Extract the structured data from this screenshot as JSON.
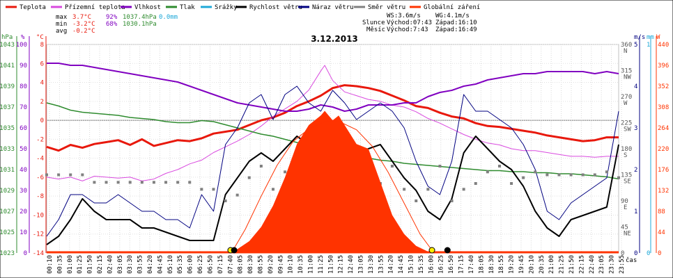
{
  "chart_data": {
    "type": "line",
    "title": "3.12.2013",
    "xlabel": "čas",
    "legend": {
      "placement": "top",
      "entries": [
        {
          "name": "Teplota",
          "color": "#e8180c"
        },
        {
          "name": "Přízemní teplota",
          "color": "#d94adf"
        },
        {
          "name": "Vlhkost",
          "color": "#8000c0"
        },
        {
          "name": "Tlak",
          "color": "#2e8b2e"
        },
        {
          "name": "Srážky",
          "color": "#1ea8d8"
        },
        {
          "name": "Rychlost větru",
          "color": "#000000"
        },
        {
          "name": "Náraz větru",
          "color": "#000080"
        },
        {
          "name": "Směr větru",
          "color": "#808080"
        },
        {
          "name": "Globální záření",
          "color": "#ff3300"
        }
      ]
    },
    "stats": {
      "max": {
        "label": "max",
        "temp": "3.7°C",
        "hum": "92%",
        "pres": "1037.4hPa",
        "rain": "0.0mm"
      },
      "min": {
        "label": "min",
        "temp": "-3.2°C",
        "hum": "68%",
        "pres": "1030.1hPa"
      },
      "avg": {
        "label": "avg",
        "temp": "-0.2°C"
      }
    },
    "info": {
      "ws": "WS:3.6m/s",
      "wg": "WG:4.1m/s",
      "sun_label": "Slunce",
      "sunrise": "Východ:07:43",
      "sunset": "Západ:16:10",
      "moon_label": "Měsíc",
      "moonrise": "Východ:7:43",
      "moonset": "Západ:16:49"
    },
    "axes": {
      "hpa": {
        "unit": "hPa",
        "range": [
          1023,
          1043
        ],
        "ticks": [
          "1043",
          "1041",
          "1039",
          "1037",
          "1035",
          "1033",
          "1031",
          "1029",
          "1027",
          "1025",
          "1023"
        ]
      },
      "pct": {
        "unit": "%",
        "range": [
          0,
          100
        ],
        "ticks": [
          "100",
          "90",
          "80",
          "70",
          "60",
          "50",
          "40",
          "30",
          "20",
          "10",
          "0"
        ]
      },
      "temp": {
        "unit": "°C",
        "range": [
          -14,
          8
        ],
        "ticks": [
          "8",
          "6",
          "4",
          "2",
          "0",
          "-2",
          "-4",
          "-6",
          "-8",
          "-10",
          "-12",
          "-14"
        ]
      },
      "dir": {
        "range": [
          0,
          360
        ],
        "ticks": [
          {
            "deg": "360",
            "name": "N"
          },
          {
            "deg": "315",
            "name": "NW"
          },
          {
            "deg": "270",
            "name": "W"
          },
          {
            "deg": "225",
            "name": "SW"
          },
          {
            "deg": "180",
            "name": "S"
          },
          {
            "deg": "135",
            "name": "SE"
          },
          {
            "deg": "90",
            "name": "E"
          },
          {
            "deg": "45",
            "name": "NE"
          },
          {
            "deg": "0",
            "name": ""
          }
        ]
      },
      "wind": {
        "unit": "m/s",
        "range": [
          0,
          5
        ],
        "ticks": [
          "5",
          "4",
          "3",
          "2",
          "1",
          "0"
        ]
      },
      "rain": {
        "unit": "mm",
        "range": [
          0,
          1
        ],
        "ticks": [
          "1",
          "0"
        ]
      },
      "rad": {
        "unit": "W",
        "range": [
          0,
          440
        ],
        "ticks": [
          "440",
          "396",
          "352",
          "308",
          "264",
          "220",
          "176",
          "132",
          "88",
          "44",
          "0"
        ]
      }
    },
    "x_range_min": [
      0,
      1440
    ],
    "x_ticks": [
      "00:10",
      "00:35",
      "01:00",
      "01:25",
      "01:50",
      "02:15",
      "02:40",
      "03:05",
      "03:30",
      "03:55",
      "04:20",
      "04:45",
      "05:10",
      "05:35",
      "06:00",
      "06:25",
      "06:50",
      "07:15",
      "07:40",
      "08:05",
      "08:30",
      "08:55",
      "09:20",
      "09:45",
      "10:10",
      "10:35",
      "11:00",
      "11:25",
      "11:50",
      "12:15",
      "12:40",
      "13:05",
      "13:30",
      "13:55",
      "14:20",
      "14:45",
      "15:10",
      "15:35",
      "16:00",
      "16:25",
      "16:50",
      "17:15",
      "17:40",
      "18:05",
      "18:30",
      "18:55",
      "19:20",
      "19:45",
      "20:10",
      "20:35",
      "21:00",
      "21:25",
      "21:50",
      "22:15",
      "22:40",
      "23:05",
      "23:30",
      "23:55"
    ],
    "sun_markers_min": [
      463,
      970
    ],
    "moon_markers_min": [
      472,
      1009
    ],
    "series": [
      {
        "name": "Teplota",
        "axis": "temp",
        "x": [
          0,
          30,
          60,
          90,
          120,
          150,
          180,
          210,
          240,
          270,
          300,
          330,
          360,
          390,
          420,
          450,
          480,
          510,
          540,
          570,
          600,
          630,
          660,
          690,
          720,
          750,
          780,
          810,
          840,
          870,
          900,
          930,
          960,
          990,
          1020,
          1050,
          1080,
          1110,
          1140,
          1170,
          1200,
          1230,
          1260,
          1290,
          1320,
          1350,
          1380,
          1410,
          1440
        ],
        "y": [
          -2.8,
          -3.2,
          -2.6,
          -2.9,
          -2.5,
          -2.3,
          -2.1,
          -2.6,
          -2.0,
          -2.7,
          -2.4,
          -2.1,
          -2.2,
          -1.9,
          -1.4,
          -1.2,
          -1.0,
          -0.5,
          0.0,
          0.3,
          0.8,
          1.5,
          2.0,
          2.6,
          3.4,
          3.7,
          3.6,
          3.4,
          3.1,
          2.6,
          2.1,
          1.5,
          1.3,
          0.8,
          0.4,
          0.2,
          -0.3,
          -0.6,
          -0.7,
          -0.9,
          -1.1,
          -1.3,
          -1.6,
          -1.8,
          -2.0,
          -2.2,
          -2.1,
          -1.8,
          -1.8
        ]
      },
      {
        "name": "Přízemní teplota",
        "axis": "temp",
        "x": [
          0,
          30,
          60,
          90,
          120,
          150,
          180,
          210,
          240,
          270,
          300,
          330,
          360,
          390,
          420,
          450,
          480,
          510,
          540,
          570,
          600,
          630,
          660,
          690,
          700,
          720,
          750,
          780,
          810,
          840,
          870,
          900,
          930,
          960,
          990,
          1020,
          1050,
          1080,
          1110,
          1140,
          1170,
          1200,
          1230,
          1260,
          1290,
          1320,
          1350,
          1380,
          1410,
          1440
        ],
        "y": [
          -6.0,
          -6.2,
          -6.0,
          -6.4,
          -5.9,
          -6.0,
          -6.1,
          -6.0,
          -6.4,
          -6.2,
          -5.6,
          -5.2,
          -4.6,
          -4.2,
          -3.4,
          -2.8,
          -2.2,
          -1.5,
          -0.6,
          0.4,
          1.2,
          2.0,
          3.2,
          5.2,
          5.8,
          4.2,
          3.0,
          2.6,
          2.2,
          2.0,
          1.6,
          1.4,
          0.9,
          0.2,
          -0.3,
          -0.9,
          -1.5,
          -2.0,
          -2.4,
          -2.6,
          -3.0,
          -3.2,
          -3.2,
          -3.4,
          -3.6,
          -3.8,
          -3.8,
          -3.9,
          -3.8,
          -3.8
        ]
      },
      {
        "name": "Vlhkost",
        "axis": "pct",
        "x": [
          0,
          30,
          60,
          90,
          120,
          150,
          180,
          210,
          240,
          270,
          300,
          330,
          360,
          390,
          420,
          450,
          480,
          510,
          540,
          570,
          600,
          630,
          660,
          690,
          720,
          750,
          780,
          810,
          840,
          870,
          900,
          930,
          960,
          990,
          1020,
          1050,
          1080,
          1110,
          1140,
          1170,
          1200,
          1230,
          1260,
          1290,
          1320,
          1350,
          1380,
          1410,
          1440
        ],
        "y": [
          91,
          91,
          90,
          90,
          89,
          88,
          87,
          86,
          85,
          84,
          83,
          82,
          80,
          78,
          76,
          74,
          72,
          71,
          70,
          69,
          68,
          68,
          69,
          71,
          70,
          68,
          69,
          71,
          71,
          71,
          72,
          72,
          75,
          77,
          78,
          80,
          81,
          83,
          84,
          85,
          86,
          86,
          87,
          87,
          87,
          87,
          86,
          87,
          86
        ]
      },
      {
        "name": "Tlak",
        "axis": "hpa",
        "x": [
          0,
          30,
          60,
          90,
          120,
          150,
          180,
          210,
          240,
          270,
          300,
          330,
          360,
          390,
          420,
          450,
          480,
          510,
          540,
          570,
          600,
          630,
          660,
          690,
          720,
          750,
          780,
          810,
          840,
          870,
          900,
          930,
          960,
          990,
          1020,
          1050,
          1080,
          1110,
          1140,
          1170,
          1200,
          1230,
          1260,
          1290,
          1320,
          1350,
          1380,
          1410,
          1440
        ],
        "y": [
          1037.4,
          1037.1,
          1036.7,
          1036.5,
          1036.4,
          1036.3,
          1036.2,
          1036.0,
          1035.9,
          1035.8,
          1035.6,
          1035.5,
          1035.5,
          1035.7,
          1035.6,
          1035.3,
          1035.0,
          1034.7,
          1034.4,
          1034.2,
          1033.9,
          1033.6,
          1033.3,
          1033.0,
          1032.8,
          1032.5,
          1032.3,
          1032.1,
          1031.9,
          1031.8,
          1031.6,
          1031.5,
          1031.4,
          1031.3,
          1031.2,
          1031.1,
          1031.0,
          1030.9,
          1030.9,
          1030.8,
          1030.8,
          1030.7,
          1030.7,
          1030.6,
          1030.6,
          1030.5,
          1030.4,
          1030.3,
          1030.1
        ]
      },
      {
        "name": "Rychlost větru",
        "axis": "wind",
        "x": [
          0,
          30,
          60,
          90,
          120,
          150,
          180,
          210,
          240,
          270,
          300,
          330,
          360,
          390,
          420,
          450,
          480,
          510,
          540,
          570,
          600,
          630,
          660,
          690,
          720,
          750,
          780,
          810,
          840,
          870,
          900,
          930,
          960,
          990,
          1020,
          1050,
          1080,
          1110,
          1140,
          1170,
          1200,
          1230,
          1260,
          1290,
          1320,
          1350,
          1380,
          1410,
          1440
        ],
        "y": [
          0.2,
          0.4,
          0.8,
          1.3,
          1.0,
          0.8,
          0.8,
          0.8,
          0.6,
          0.6,
          0.5,
          0.4,
          0.3,
          0.3,
          0.3,
          1.4,
          1.8,
          2.2,
          2.4,
          2.2,
          2.5,
          2.8,
          2.6,
          2.5,
          2.8,
          2.6,
          2.4,
          2.5,
          2.6,
          2.2,
          1.8,
          1.5,
          1.0,
          0.8,
          1.3,
          2.4,
          2.8,
          2.5,
          2.2,
          2.0,
          1.6,
          1.0,
          0.6,
          0.4,
          0.8,
          0.9,
          1.0,
          1.1,
          2.6
        ]
      },
      {
        "name": "Náraz větru",
        "axis": "wind",
        "x": [
          0,
          30,
          60,
          90,
          120,
          150,
          180,
          210,
          240,
          270,
          300,
          330,
          360,
          390,
          420,
          450,
          480,
          510,
          540,
          570,
          600,
          630,
          660,
          690,
          720,
          750,
          780,
          810,
          840,
          870,
          900,
          930,
          960,
          990,
          1020,
          1050,
          1080,
          1110,
          1140,
          1170,
          1200,
          1230,
          1260,
          1290,
          1320,
          1350,
          1380,
          1410,
          1440
        ],
        "y": [
          0.4,
          0.8,
          1.4,
          1.4,
          1.2,
          1.2,
          1.4,
          1.2,
          1.0,
          1.0,
          0.8,
          0.8,
          0.6,
          1.4,
          1.0,
          2.6,
          3.0,
          3.6,
          3.8,
          3.2,
          3.8,
          4.0,
          3.6,
          3.4,
          3.9,
          3.6,
          3.2,
          3.4,
          3.6,
          3.4,
          3.0,
          2.2,
          1.6,
          1.4,
          2.2,
          3.8,
          3.4,
          3.4,
          3.2,
          3.0,
          2.6,
          2.0,
          1.0,
          0.8,
          1.2,
          1.4,
          1.6,
          1.8,
          3.4
        ]
      },
      {
        "name": "Směr větru",
        "axis": "dir",
        "type": "scatter",
        "x": [
          0,
          30,
          60,
          90,
          120,
          150,
          180,
          210,
          240,
          270,
          300,
          330,
          360,
          390,
          420,
          450,
          480,
          510,
          540,
          570,
          600,
          630,
          660,
          690,
          720,
          750,
          780,
          810,
          840,
          870,
          900,
          930,
          960,
          990,
          1020,
          1050,
          1080,
          1110,
          1140,
          1170,
          1200,
          1230,
          1260,
          1290,
          1320,
          1350,
          1380,
          1410,
          1440
        ],
        "y": [
          135,
          135,
          135,
          135,
          122,
          122,
          122,
          122,
          122,
          122,
          122,
          122,
          122,
          110,
          110,
          90,
          100,
          130,
          150,
          110,
          140,
          150,
          120,
          170,
          100,
          130,
          150,
          140,
          120,
          150,
          110,
          90,
          110,
          150,
          90,
          110,
          120,
          140,
          150,
          120,
          130,
          140,
          135,
          135,
          135,
          135,
          135,
          140,
          130
        ]
      },
      {
        "name": "Globální záření",
        "axis": "rad",
        "type": "area",
        "x": [
          465,
          480,
          510,
          540,
          570,
          600,
          630,
          660,
          690,
          700,
          720,
          735,
          750,
          780,
          810,
          840,
          870,
          900,
          930,
          960,
          975
        ],
        "y": [
          0,
          8,
          25,
          55,
          100,
          160,
          230,
          270,
          290,
          300,
          280,
          290,
          270,
          230,
          220,
          150,
          80,
          40,
          15,
          3,
          0
        ]
      },
      {
        "name": "Globální záření",
        "axis": "rad",
        "type": "line",
        "x": [
          465,
          500,
          540,
          580,
          620,
          660,
          700,
          720,
          740,
          780,
          820,
          860,
          900,
          940,
          975
        ],
        "y": [
          0,
          50,
          120,
          185,
          235,
          262,
          277,
          280,
          276,
          260,
          225,
          170,
          105,
          40,
          0
        ]
      }
    ]
  }
}
